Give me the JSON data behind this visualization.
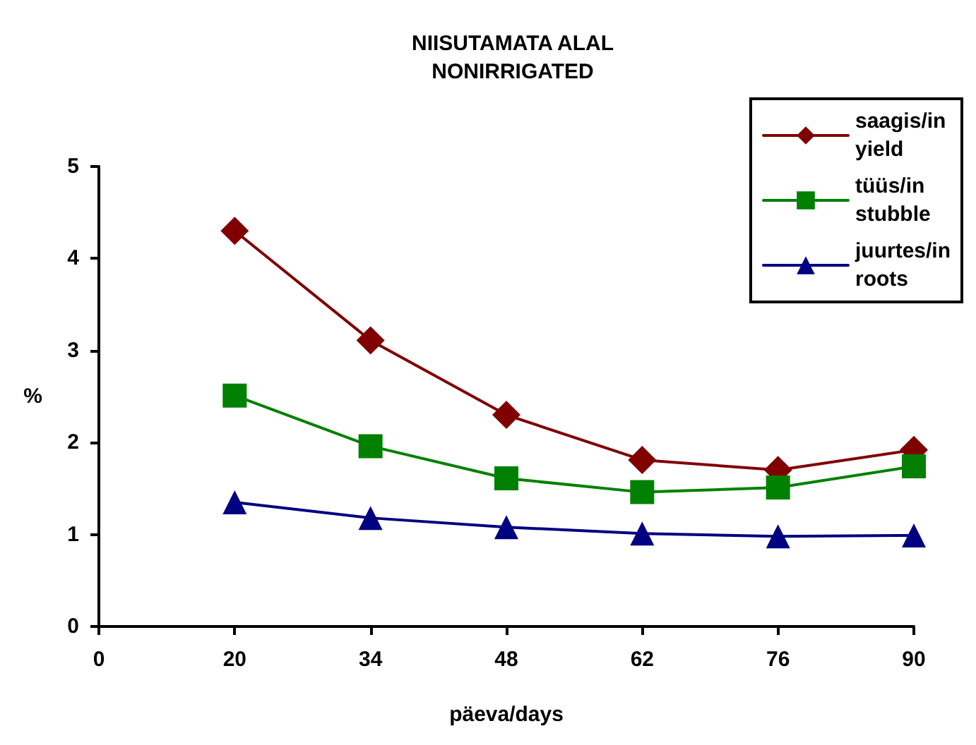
{
  "chart_data": {
    "type": "line",
    "title": "NIISUTAMATA ALAL\nNONIRRIGATED",
    "xlabel": "päeva/days",
    "ylabel": "%",
    "categories": [
      "0",
      "20",
      "34",
      "48",
      "62",
      "76",
      "90"
    ],
    "series": [
      {
        "name": "saagis/in\nyield",
        "color": "#800000",
        "marker": "diamond",
        "values": [
          null,
          4.3,
          3.11,
          2.3,
          1.81,
          1.7,
          1.92
        ]
      },
      {
        "name": "tüüs/in\nstubble",
        "color": "#008000",
        "marker": "square",
        "values": [
          null,
          2.51,
          1.96,
          1.61,
          1.46,
          1.51,
          1.74
        ]
      },
      {
        "name": "juurtes/in\nroots",
        "color": "#000080",
        "marker": "triangle",
        "values": [
          null,
          1.35,
          1.18,
          1.08,
          1.01,
          0.98,
          0.99
        ]
      }
    ],
    "ylim": [
      0,
      5
    ],
    "yticks": [
      0,
      1,
      2,
      3,
      4,
      5
    ],
    "grid": false,
    "legend": "top right",
    "line_style": "solid"
  }
}
